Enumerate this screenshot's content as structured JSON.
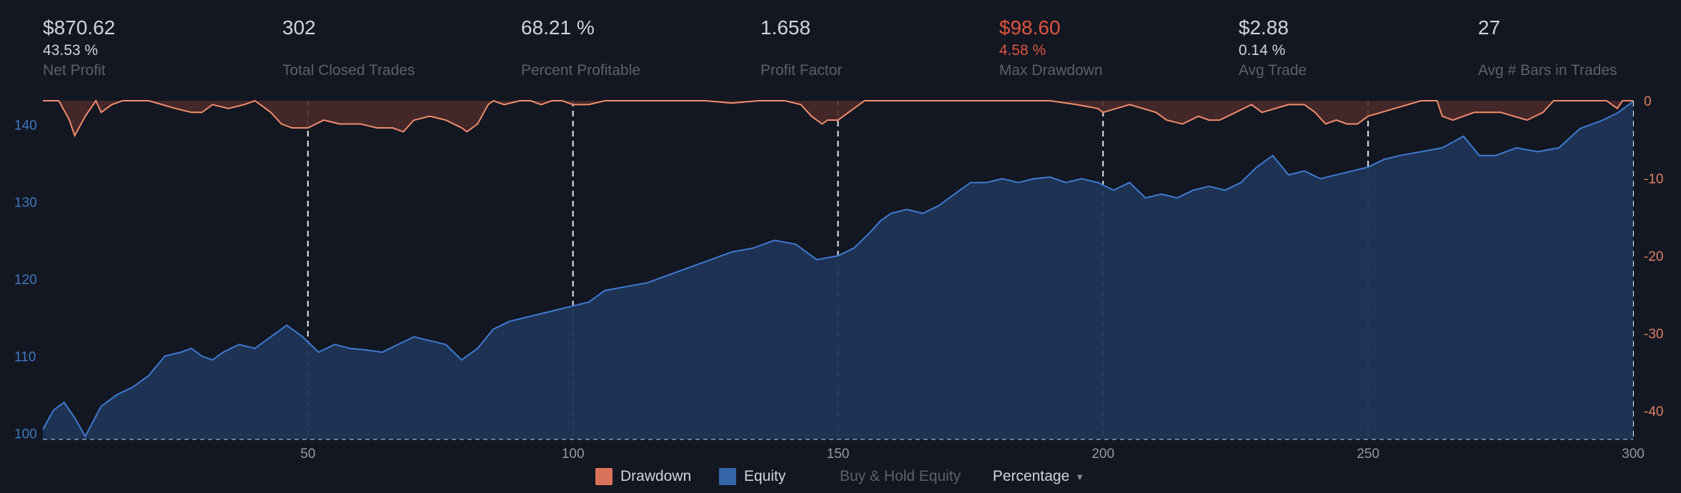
{
  "stats": [
    {
      "value": "$870.62",
      "sub": "43.53 %",
      "label": "Net Profit"
    },
    {
      "value": "302",
      "sub": "",
      "label": "Total Closed Trades"
    },
    {
      "value": "68.21 %",
      "sub": "",
      "label": "Percent Profitable"
    },
    {
      "value": "1.658",
      "sub": "",
      "label": "Profit Factor"
    },
    {
      "value": "$98.60",
      "sub": "4.58 %",
      "label": "Max Drawdown"
    },
    {
      "value": "$2.88",
      "sub": "0.14 %",
      "label": "Avg Trade"
    },
    {
      "value": "27",
      "sub": "",
      "label": "Avg # Bars in Trades"
    }
  ],
  "legend": {
    "drawdown": "Drawdown",
    "equity": "Equity",
    "buy_hold": "Buy & Hold Equity",
    "mode": "Percentage"
  },
  "colors": {
    "background": "#131722",
    "equity": "#2962ff",
    "equity_line": "#3f7ad1",
    "equity_fill": "#1f3557",
    "drawdown_line": "#f08c6c",
    "drawdown_fill": "#4a2a2a",
    "negative": "#e0533f",
    "left_axis_text": "#3f78c0",
    "right_axis_text": "#e07f62"
  },
  "chart_data": {
    "type": "area",
    "xlim": [
      0,
      300
    ],
    "x_ticks": [
      50,
      100,
      150,
      200,
      250,
      300
    ],
    "vertical_gridlines": [
      50,
      100,
      150,
      200,
      250,
      300
    ],
    "left_axis": {
      "ticks": [
        100,
        110,
        120,
        130,
        140
      ],
      "ylim": [
        99.2,
        143.1
      ]
    },
    "right_axis": {
      "ticks": [
        0,
        -10,
        -20,
        -30,
        -40
      ],
      "ylim": [
        -43.7,
        0
      ]
    },
    "series": [
      {
        "name": "Equity",
        "axis": "left",
        "x": [
          0,
          2,
          4,
          6,
          8,
          11,
          14,
          17,
          20,
          23,
          26,
          28,
          30,
          32,
          34,
          37,
          40,
          43,
          46,
          49,
          52,
          55,
          58,
          61,
          64,
          67,
          70,
          73,
          76,
          79,
          82,
          85,
          88,
          91,
          94,
          97,
          100,
          103,
          106,
          110,
          114,
          118,
          122,
          126,
          130,
          134,
          138,
          142,
          146,
          150,
          153,
          156,
          158,
          160,
          163,
          166,
          169,
          172,
          175,
          178,
          181,
          184,
          187,
          190,
          193,
          196,
          199,
          202,
          205,
          208,
          211,
          214,
          217,
          220,
          223,
          226,
          229,
          232,
          235,
          238,
          241,
          244,
          247,
          250,
          253,
          256,
          260,
          264,
          268,
          271,
          274,
          278,
          282,
          286,
          290,
          294,
          297,
          299,
          300
        ],
        "values": [
          100.5,
          103,
          104,
          102,
          99.6,
          103.5,
          105,
          106,
          107.5,
          110,
          110.5,
          111,
          110,
          109.5,
          110.5,
          111.5,
          111,
          112.5,
          114,
          112.5,
          110.5,
          111.5,
          111,
          110.8,
          110.5,
          111.5,
          112.5,
          112,
          111.5,
          109.5,
          111,
          113.5,
          114.5,
          115,
          115.5,
          116,
          116.5,
          117,
          118.5,
          119,
          119.5,
          120.5,
          121.5,
          122.5,
          123.5,
          124,
          125,
          124.5,
          122.5,
          123,
          124,
          126,
          127.5,
          128.5,
          129,
          128.5,
          129.5,
          131,
          132.5,
          132.5,
          133,
          132.5,
          133,
          133.2,
          132.5,
          133,
          132.5,
          131.5,
          132.5,
          130.5,
          131,
          130.5,
          131.5,
          132,
          131.5,
          132.5,
          134.5,
          136,
          133.5,
          134,
          133,
          133.5,
          134,
          134.5,
          135.5,
          136,
          136.5,
          137,
          138.5,
          136,
          136,
          137,
          136.5,
          137,
          139.5,
          140.5,
          141.5,
          142.5,
          143
        ]
      },
      {
        "name": "Drawdown",
        "axis": "right",
        "x": [
          0,
          3,
          5,
          6,
          8,
          10,
          11,
          13,
          15,
          20,
          25,
          28,
          30,
          32,
          35,
          38,
          40,
          43,
          45,
          47,
          50,
          53,
          56,
          60,
          63,
          66,
          68,
          70,
          73,
          76,
          79,
          80,
          82,
          84,
          85,
          87,
          90,
          92,
          94,
          96,
          98,
          100,
          103,
          106,
          110,
          115,
          120,
          125,
          130,
          135,
          140,
          143,
          145,
          147,
          148,
          150,
          152,
          155,
          158,
          160,
          165,
          170,
          175,
          180,
          185,
          190,
          195,
          199,
          200,
          205,
          210,
          212,
          215,
          218,
          220,
          222,
          225,
          228,
          230,
          235,
          238,
          240,
          242,
          244,
          246,
          248,
          250,
          255,
          260,
          263,
          264,
          266,
          270,
          275,
          280,
          283,
          285,
          290,
          295,
          297,
          298,
          300
        ],
        "values": [
          0,
          0,
          -2.5,
          -4.5,
          -2,
          0,
          -1.5,
          -0.5,
          0,
          0,
          -1,
          -1.5,
          -1.5,
          -0.5,
          -1,
          -0.5,
          0,
          -1.5,
          -3,
          -3.5,
          -3.5,
          -2.5,
          -3,
          -3,
          -3.5,
          -3.5,
          -4,
          -2.5,
          -2,
          -2.5,
          -3.5,
          -4,
          -3,
          -0.5,
          0,
          -0.5,
          0,
          0,
          -0.5,
          0,
          0,
          -0.5,
          -0.5,
          0,
          0,
          0,
          0,
          0,
          -0.3,
          0,
          0,
          -0.5,
          -2,
          -3,
          -2.5,
          -2.5,
          -1.5,
          0,
          0,
          0,
          0,
          0,
          0,
          0,
          0,
          0,
          -0.5,
          -1,
          -1.5,
          -0.5,
          -1.5,
          -2.5,
          -3,
          -2,
          -2.5,
          -2.5,
          -1.5,
          -0.5,
          -1.5,
          -0.5,
          -0.5,
          -1.5,
          -3,
          -2.5,
          -3,
          -3,
          -2,
          -1,
          0,
          0,
          -2,
          -2.5,
          -1.5,
          -1.5,
          -2.5,
          -1.5,
          0,
          0,
          0,
          -1,
          0,
          0
        ]
      },
      {
        "name": "Buy & Hold Equity",
        "axis": "left",
        "x": [],
        "values": []
      }
    ]
  }
}
